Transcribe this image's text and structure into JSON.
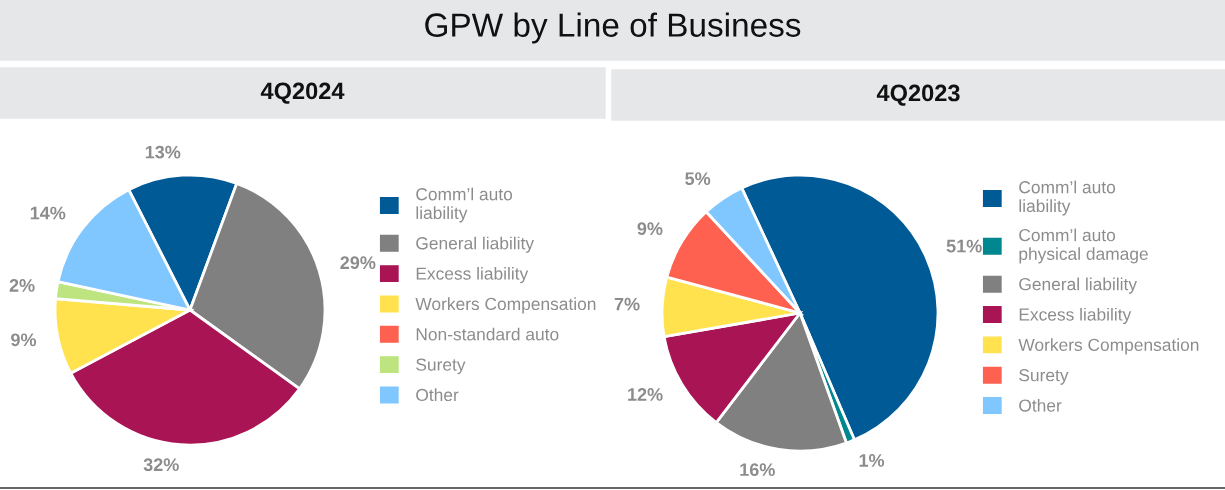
{
  "chart_data": [
    {
      "type": "pie",
      "title": "GPW by Line of Business",
      "subtitle": "4Q2024",
      "legend": "right",
      "categories": [
        "Comm’l auto\nliability",
        "General liability",
        "Excess liability",
        "Workers Compensation",
        "Non-standard auto",
        "Surety",
        "Other"
      ],
      "values": [
        13,
        29,
        32,
        9,
        0,
        2,
        14
      ],
      "value_labels": [
        "13%",
        "29%",
        "32%",
        "9%",
        null,
        "2%",
        "14%"
      ],
      "colors": [
        "#005a96",
        "#808080",
        "#a91454",
        "#ffe24d",
        "#ff6151",
        "#bde47f",
        "#80c6ff"
      ]
    },
    {
      "type": "pie",
      "subtitle": "4Q2023",
      "legend": "right",
      "categories": [
        "Comm’l auto\nliability",
        "Comm’l auto\nphysical damage",
        "General liability",
        "Excess liability",
        "Workers Compensation",
        "Surety",
        "Other"
      ],
      "values": [
        51,
        1,
        16,
        12,
        7,
        9,
        5
      ],
      "value_labels": [
        "51%",
        "1%",
        "16%",
        "12%",
        "7%",
        "9%",
        "5%"
      ],
      "colors": [
        "#005a96",
        "#00878f",
        "#808080",
        "#a91454",
        "#ffe24d",
        "#ff6151",
        "#80c6ff"
      ]
    }
  ]
}
